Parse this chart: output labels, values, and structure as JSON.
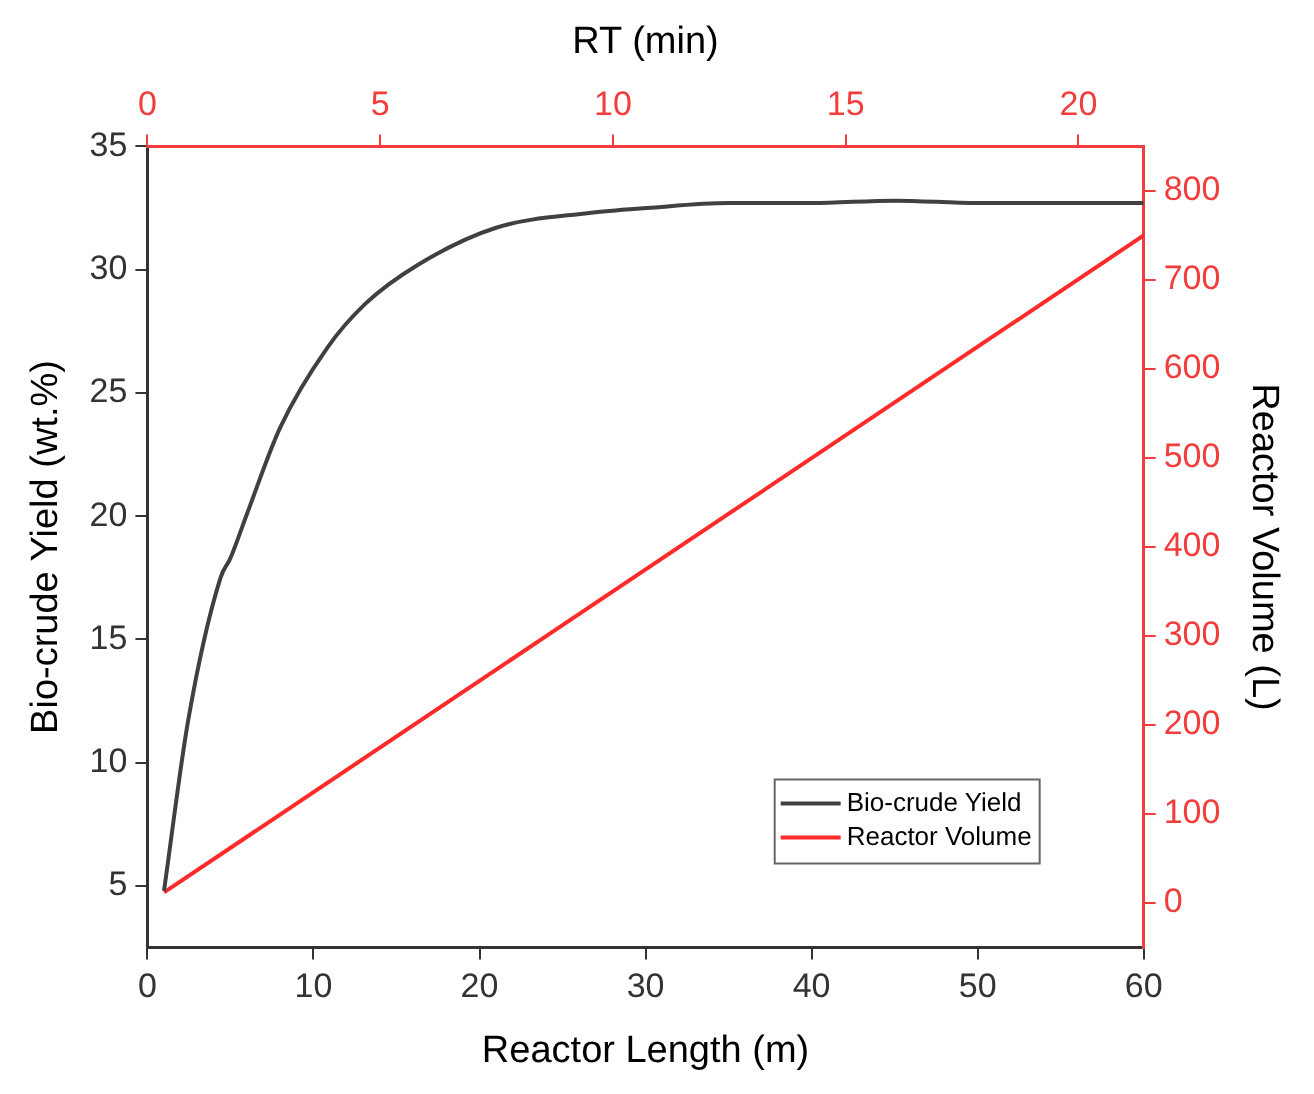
{
  "chart_data": {
    "type": "line",
    "xlabel": "Reactor Length (m)",
    "ylabel": "Bio-crude Yield (wt.%)",
    "y2label": "Reactor Volume (L)",
    "x2label": "RT (min)",
    "xlim": [
      0,
      60
    ],
    "xticks": [
      0,
      10,
      20,
      30,
      40,
      50,
      60
    ],
    "ylim": [
      2.5,
      35
    ],
    "yticks": [
      5,
      10,
      15,
      20,
      25,
      30,
      35
    ],
    "y2lim": [
      -50,
      850
    ],
    "y2ticks": [
      0,
      100,
      200,
      300,
      400,
      500,
      600,
      700,
      800
    ],
    "x2lim": [
      0,
      21.4
    ],
    "x2ticks": [
      0,
      5,
      10,
      15,
      20
    ],
    "grid": false,
    "legend": "bottom right",
    "line_style": "solid",
    "marker": "none",
    "series": [
      {
        "name": "Bio-crude Yield",
        "color": "#404040",
        "x": [
          1,
          2.45,
          4.4,
          5,
          6,
          8,
          10.8,
          13.1,
          16.3,
          21,
          26.6,
          30.1,
          35,
          40,
          45,
          50,
          55,
          60
        ],
        "values": [
          4.8,
          11.7,
          17.5,
          18.3,
          20.1,
          23.6,
          26.8,
          28.6,
          30.2,
          31.7,
          32.3,
          32.5,
          32.7,
          32.7,
          32.8,
          32.7,
          32.7,
          32.7
        ]
      },
      {
        "name": "Reactor Volume",
        "color": "#ff2a2a",
        "axis": "y2",
        "x": [
          1,
          60
        ],
        "values": [
          12,
          750
        ]
      }
    ]
  }
}
